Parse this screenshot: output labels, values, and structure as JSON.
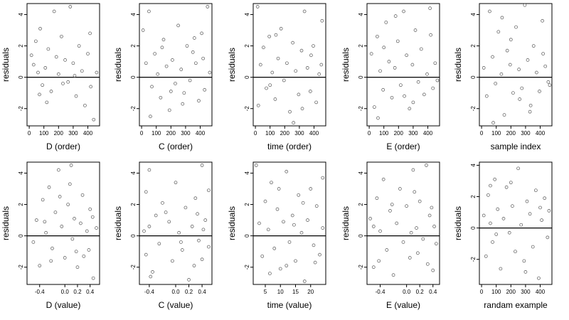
{
  "chart_data": [
    {
      "type": "scatter",
      "ylabel": "residuals",
      "xlabel": "D (order)",
      "xticks": [
        "0",
        "100",
        "200",
        "300",
        "400"
      ],
      "xlim": [
        -15,
        480
      ],
      "yticks": [
        "-2",
        "0",
        "2",
        "4"
      ],
      "ylim": [
        -3.1,
        4.7
      ],
      "hline": 0,
      "points": [
        [
          15,
          1.4
        ],
        [
          30,
          0.8
        ],
        [
          45,
          2.3
        ],
        [
          60,
          0.3
        ],
        [
          75,
          3.1
        ],
        [
          90,
          -0.5
        ],
        [
          110,
          0.6
        ],
        [
          130,
          1.8
        ],
        [
          150,
          -0.9
        ],
        [
          170,
          4.2
        ],
        [
          200,
          0.2
        ],
        [
          220,
          2.6
        ],
        [
          245,
          1.1
        ],
        [
          265,
          -0.3
        ],
        [
          280,
          4.5
        ],
        [
          300,
          0.9
        ],
        [
          320,
          -1.2
        ],
        [
          340,
          2.0
        ],
        [
          360,
          0.4
        ],
        [
          380,
          -1.8
        ],
        [
          400,
          1.5
        ],
        [
          420,
          -0.6
        ],
        [
          440,
          -2.7
        ],
        [
          460,
          0.3
        ],
        [
          70,
          -1.1
        ],
        [
          230,
          -0.4
        ],
        [
          310,
          0.1
        ],
        [
          120,
          -1.6
        ],
        [
          185,
          1.3
        ],
        [
          415,
          2.8
        ]
      ]
    },
    {
      "type": "scatter",
      "ylabel": "residuals",
      "xlabel": "C (order)",
      "xticks": [
        "0",
        "100",
        "200",
        "300",
        "400"
      ],
      "xlim": [
        -15,
        480
      ],
      "yticks": [
        "-2",
        "0",
        "2",
        "4"
      ],
      "ylim": [
        -3.1,
        4.7
      ],
      "hline": 0,
      "points": [
        [
          10,
          3.0
        ],
        [
          30,
          0.9
        ],
        [
          50,
          4.2
        ],
        [
          70,
          -0.6
        ],
        [
          90,
          1.5
        ],
        [
          110,
          0.2
        ],
        [
          130,
          -1.3
        ],
        [
          150,
          2.4
        ],
        [
          170,
          0.7
        ],
        [
          190,
          -2.1
        ],
        [
          210,
          1.1
        ],
        [
          230,
          -0.4
        ],
        [
          250,
          3.3
        ],
        [
          270,
          0.5
        ],
        [
          290,
          -1.0
        ],
        [
          310,
          2.0
        ],
        [
          330,
          -0.2
        ],
        [
          350,
          1.6
        ],
        [
          370,
          0.9
        ],
        [
          390,
          -1.5
        ],
        [
          410,
          2.8
        ],
        [
          430,
          -0.8
        ],
        [
          450,
          4.5
        ],
        [
          465,
          0.3
        ],
        [
          60,
          -2.5
        ],
        [
          140,
          1.9
        ],
        [
          280,
          -1.7
        ],
        [
          360,
          2.5
        ],
        [
          200,
          -0.9
        ],
        [
          420,
          1.2
        ]
      ]
    },
    {
      "type": "scatter",
      "ylabel": "residuals",
      "xlabel": "time (order)",
      "xticks": [
        "0",
        "100",
        "200",
        "300",
        "400"
      ],
      "xlim": [
        -15,
        480
      ],
      "yticks": [
        "-2",
        "0",
        "2",
        "4"
      ],
      "ylim": [
        -3.1,
        4.7
      ],
      "hline": 0,
      "points": [
        [
          15,
          4.5
        ],
        [
          35,
          0.8
        ],
        [
          55,
          1.9
        ],
        [
          75,
          -0.7
        ],
        [
          95,
          2.6
        ],
        [
          115,
          0.3
        ],
        [
          135,
          -1.4
        ],
        [
          155,
          1.2
        ],
        [
          175,
          3.1
        ],
        [
          195,
          -0.2
        ],
        [
          215,
          0.9
        ],
        [
          235,
          -2.2
        ],
        [
          255,
          2.2
        ],
        [
          275,
          0.4
        ],
        [
          295,
          -1.1
        ],
        [
          315,
          1.7
        ],
        [
          335,
          4.2
        ],
        [
          355,
          0.6
        ],
        [
          375,
          -0.9
        ],
        [
          395,
          2.0
        ],
        [
          415,
          -1.6
        ],
        [
          435,
          0.2
        ],
        [
          455,
          3.6
        ],
        [
          20,
          -1.8
        ],
        [
          140,
          2.7
        ],
        [
          260,
          -2.9
        ],
        [
          380,
          1.4
        ],
        [
          100,
          -0.5
        ],
        [
          320,
          -2.0
        ],
        [
          450,
          0.8
        ]
      ]
    },
    {
      "type": "scatter",
      "ylabel": "residuals",
      "xlabel": "E (order)",
      "xticks": [
        "0",
        "100",
        "200",
        "300",
        "400"
      ],
      "xlim": [
        -15,
        480
      ],
      "yticks": [
        "-2",
        "0",
        "2",
        "4"
      ],
      "ylim": [
        -3.1,
        4.7
      ],
      "hline": 0,
      "points": [
        [
          15,
          1.5
        ],
        [
          35,
          -1.9
        ],
        [
          55,
          2.6
        ],
        [
          75,
          0.4
        ],
        [
          95,
          -0.8
        ],
        [
          115,
          3.5
        ],
        [
          135,
          1.0
        ],
        [
          155,
          -1.3
        ],
        [
          175,
          0.6
        ],
        [
          195,
          2.3
        ],
        [
          215,
          -0.5
        ],
        [
          235,
          4.2
        ],
        [
          255,
          1.4
        ],
        [
          275,
          -2.0
        ],
        [
          295,
          0.8
        ],
        [
          315,
          3.0
        ],
        [
          335,
          -0.3
        ],
        [
          355,
          1.8
        ],
        [
          375,
          -1.1
        ],
        [
          395,
          0.2
        ],
        [
          415,
          4.4
        ],
        [
          435,
          -0.7
        ],
        [
          450,
          0.9
        ],
        [
          465,
          -0.2
        ],
        [
          60,
          -2.6
        ],
        [
          180,
          3.9
        ],
        [
          300,
          -1.6
        ],
        [
          420,
          2.7
        ],
        [
          100,
          1.9
        ],
        [
          240,
          -1.2
        ]
      ]
    },
    {
      "type": "scatter",
      "ylabel": "residuals",
      "xlabel": "sample index",
      "xticks": [
        "0",
        "100",
        "200",
        "300",
        "400"
      ],
      "xlim": [
        -15,
        480
      ],
      "yticks": [
        "-2",
        "0",
        "2",
        "4"
      ],
      "ylim": [
        -3.1,
        4.7
      ],
      "hline": 0,
      "points": [
        [
          15,
          0.6
        ],
        [
          35,
          -1.2
        ],
        [
          55,
          4.2
        ],
        [
          75,
          1.3
        ],
        [
          95,
          -0.4
        ],
        [
          115,
          2.9
        ],
        [
          135,
          0.2
        ],
        [
          155,
          -2.4
        ],
        [
          175,
          1.7
        ],
        [
          195,
          0.8
        ],
        [
          215,
          -1.0
        ],
        [
          235,
          3.2
        ],
        [
          255,
          0.5
        ],
        [
          275,
          -0.7
        ],
        [
          295,
          4.6
        ],
        [
          315,
          1.1
        ],
        [
          335,
          -1.8
        ],
        [
          355,
          2.0
        ],
        [
          375,
          0.3
        ],
        [
          395,
          -0.9
        ],
        [
          415,
          3.6
        ],
        [
          435,
          0.7
        ],
        [
          455,
          -0.3
        ],
        [
          465,
          -0.5
        ],
        [
          80,
          -2.9
        ],
        [
          200,
          2.4
        ],
        [
          330,
          -2.2
        ],
        [
          420,
          1.5
        ],
        [
          140,
          3.8
        ],
        [
          260,
          -1.4
        ]
      ]
    },
    {
      "type": "scatter",
      "ylabel": "residuals",
      "xlabel": "D (value)",
      "xticks": [
        "-0.4",
        "0.0",
        "0.2",
        "0.4"
      ],
      "xtickvals": [
        -0.4,
        0,
        0.2,
        0.4
      ],
      "xlim": [
        -0.6,
        0.55
      ],
      "yticks": [
        "-2",
        "0",
        "2",
        "4"
      ],
      "ylim": [
        -3.1,
        4.7
      ],
      "hline": 0,
      "points": [
        [
          -0.45,
          1.0
        ],
        [
          -0.4,
          -1.9
        ],
        [
          -0.35,
          2.3
        ],
        [
          -0.3,
          0.2
        ],
        [
          -0.25,
          3.1
        ],
        [
          -0.2,
          -0.8
        ],
        [
          -0.15,
          1.5
        ],
        [
          -0.1,
          4.2
        ],
        [
          -0.05,
          0.6
        ],
        [
          0.0,
          -1.4
        ],
        [
          0.05,
          2.0
        ],
        [
          0.1,
          4.5
        ],
        [
          0.12,
          -0.2
        ],
        [
          0.15,
          1.1
        ],
        [
          0.2,
          -2.0
        ],
        [
          0.25,
          0.8
        ],
        [
          0.28,
          2.6
        ],
        [
          0.3,
          -1.3
        ],
        [
          0.35,
          0.3
        ],
        [
          0.4,
          1.7
        ],
        [
          0.45,
          -2.7
        ],
        [
          0.5,
          0.5
        ],
        [
          -0.5,
          -0.4
        ],
        [
          0.08,
          3.3
        ],
        [
          -0.22,
          -1.6
        ],
        [
          0.38,
          -0.9
        ],
        [
          -0.08,
          2.5
        ],
        [
          0.18,
          -1.0
        ],
        [
          0.44,
          1.2
        ],
        [
          -0.32,
          0.9
        ]
      ]
    },
    {
      "type": "scatter",
      "ylabel": "residuals",
      "xlabel": "C (value)",
      "xticks": [
        "-0.4",
        "0.0",
        "0.2",
        "0.4"
      ],
      "xtickvals": [
        -0.4,
        0,
        0.2,
        0.4
      ],
      "xlim": [
        -0.55,
        0.55
      ],
      "yticks": [
        "-2",
        "0",
        "2",
        "4"
      ],
      "ylim": [
        -3.1,
        4.7
      ],
      "hline": 0,
      "points": [
        [
          -0.45,
          2.8
        ],
        [
          -0.45,
          -1.2
        ],
        [
          -0.4,
          4.2
        ],
        [
          -0.4,
          0.6
        ],
        [
          -0.35,
          -2.3
        ],
        [
          -0.3,
          1.3
        ],
        [
          -0.25,
          -0.5
        ],
        [
          -0.2,
          2.1
        ],
        [
          -0.1,
          0.9
        ],
        [
          -0.05,
          -1.6
        ],
        [
          0.0,
          3.4
        ],
        [
          0.05,
          0.2
        ],
        [
          0.1,
          -0.9
        ],
        [
          0.15,
          1.8
        ],
        [
          0.2,
          -2.8
        ],
        [
          0.25,
          0.6
        ],
        [
          0.3,
          2.4
        ],
        [
          0.35,
          -0.3
        ],
        [
          0.4,
          4.5
        ],
        [
          0.4,
          -1.5
        ],
        [
          0.45,
          1.0
        ],
        [
          0.5,
          -0.7
        ],
        [
          0.5,
          2.9
        ],
        [
          -0.38,
          -2.6
        ],
        [
          0.28,
          -1.9
        ],
        [
          -0.15,
          1.5
        ],
        [
          0.08,
          -0.4
        ],
        [
          0.42,
          0.4
        ],
        [
          -0.48,
          0.3
        ],
        [
          0.33,
          1.4
        ]
      ]
    },
    {
      "type": "scatter",
      "ylabel": "residuals",
      "xlabel": "time (value)",
      "xticks": [
        "5",
        "10",
        "15",
        "20"
      ],
      "xtickvals": [
        5,
        10,
        15,
        20
      ],
      "xlim": [
        1,
        25
      ],
      "yticks": [
        "-2",
        "0",
        "2",
        "4"
      ],
      "ylim": [
        -3.1,
        4.7
      ],
      "hline": 0,
      "points": [
        [
          2,
          4.5
        ],
        [
          3,
          0.8
        ],
        [
          4,
          -1.3
        ],
        [
          5,
          2.2
        ],
        [
          6,
          0.4
        ],
        [
          7,
          3.4
        ],
        [
          8,
          -0.8
        ],
        [
          9,
          1.7
        ],
        [
          10,
          -2.1
        ],
        [
          11,
          0.9
        ],
        [
          12,
          4.1
        ],
        [
          13,
          -0.4
        ],
        [
          14,
          1.3
        ],
        [
          15,
          -1.6
        ],
        [
          16,
          2.6
        ],
        [
          17,
          0.2
        ],
        [
          18,
          -2.9
        ],
        [
          19,
          1.0
        ],
        [
          20,
          3.0
        ],
        [
          21,
          -0.6
        ],
        [
          22,
          1.9
        ],
        [
          23,
          -1.2
        ],
        [
          24,
          3.7
        ],
        [
          24,
          0.5
        ],
        [
          6.5,
          -2.4
        ],
        [
          12,
          -1.9
        ],
        [
          17.5,
          2.1
        ],
        [
          9.5,
          3.0
        ],
        [
          14.5,
          0.7
        ],
        [
          21.5,
          -1.7
        ]
      ]
    },
    {
      "type": "scatter",
      "ylabel": "residuals",
      "xlabel": "E (value)",
      "xticks": [
        "-0.4",
        "0.0",
        "0.2",
        "0.4"
      ],
      "xtickvals": [
        -0.4,
        0,
        0.2,
        0.4
      ],
      "xlim": [
        -0.6,
        0.5
      ],
      "yticks": [
        "-2",
        "0",
        "2",
        "4"
      ],
      "ylim": [
        -3.1,
        4.7
      ],
      "hline": 0,
      "points": [
        [
          -0.55,
          1.1
        ],
        [
          -0.5,
          -2.0
        ],
        [
          -0.45,
          2.4
        ],
        [
          -0.4,
          0.3
        ],
        [
          -0.35,
          3.6
        ],
        [
          -0.3,
          -0.9
        ],
        [
          -0.25,
          1.6
        ],
        [
          -0.2,
          -2.5
        ],
        [
          -0.15,
          0.8
        ],
        [
          -0.1,
          3.0
        ],
        [
          -0.05,
          -0.4
        ],
        [
          0.0,
          1.9
        ],
        [
          0.05,
          -1.4
        ],
        [
          0.1,
          4.2
        ],
        [
          0.15,
          0.5
        ],
        [
          0.17,
          -1.1
        ],
        [
          0.2,
          2.2
        ],
        [
          0.25,
          -0.2
        ],
        [
          0.3,
          4.5
        ],
        [
          0.35,
          1.3
        ],
        [
          0.4,
          -2.2
        ],
        [
          0.42,
          0.6
        ],
        [
          0.45,
          -0.5
        ],
        [
          -0.42,
          -1.6
        ],
        [
          0.12,
          2.8
        ],
        [
          0.32,
          -1.8
        ],
        [
          -0.22,
          2.0
        ],
        [
          0.07,
          0.2
        ],
        [
          0.38,
          1.8
        ],
        [
          -0.5,
          0.6
        ]
      ]
    },
    {
      "type": "scatter",
      "ylabel": "residuals",
      "xlabel": "randam example",
      "xticks": [
        "0",
        "100",
        "200",
        "300",
        "400"
      ],
      "xlim": [
        -15,
        480
      ],
      "yticks": [
        "-2",
        "0",
        "2",
        "4"
      ],
      "ylim": [
        -3.6,
        4.2
      ],
      "hline": 0,
      "points": [
        [
          15,
          0.8
        ],
        [
          30,
          -1.8
        ],
        [
          45,
          2.1
        ],
        [
          60,
          0.3
        ],
        [
          75,
          -0.9
        ],
        [
          90,
          3.1
        ],
        [
          110,
          1.2
        ],
        [
          130,
          -2.6
        ],
        [
          150,
          0.6
        ],
        [
          170,
          2.6
        ],
        [
          190,
          -0.3
        ],
        [
          210,
          1.4
        ],
        [
          230,
          -1.5
        ],
        [
          250,
          3.8
        ],
        [
          270,
          0.2
        ],
        [
          290,
          -2.1
        ],
        [
          310,
          1.7
        ],
        [
          330,
          0.9
        ],
        [
          350,
          -1.2
        ],
        [
          370,
          2.4
        ],
        [
          390,
          -3.2
        ],
        [
          410,
          0.5
        ],
        [
          430,
          1.9
        ],
        [
          450,
          -0.6
        ],
        [
          460,
          1.1
        ],
        [
          100,
          -0.4
        ],
        [
          200,
          2.9
        ],
        [
          300,
          -2.8
        ],
        [
          400,
          1.3
        ],
        [
          60,
          2.7
        ]
      ]
    }
  ]
}
